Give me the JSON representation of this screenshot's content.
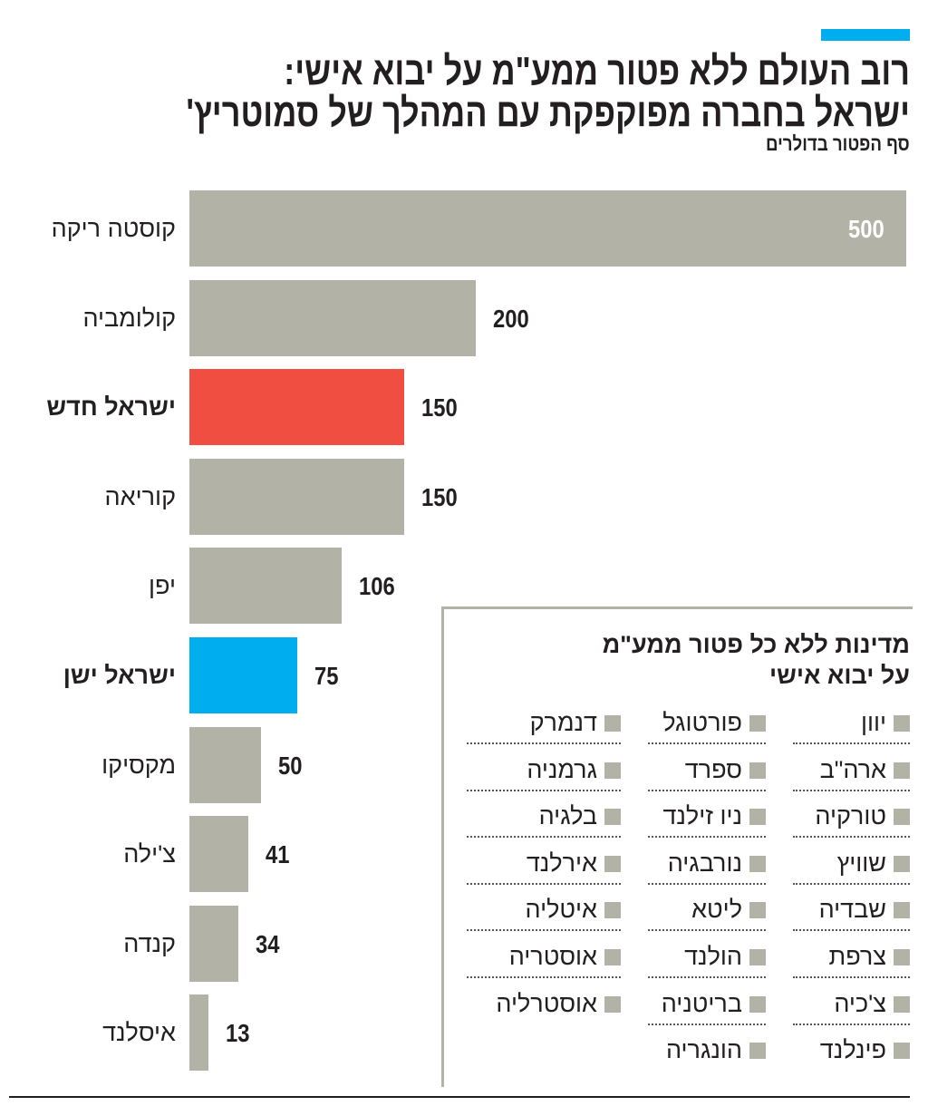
{
  "title_lines": [
    "רוב העולם ללא פטור ממע\"מ על יבוא אישי:",
    "ישראל בחברה מפוקפקת עם המהלך של סמוטריץ'"
  ],
  "subtitle": "סף הפטור בדולרים",
  "colors": {
    "default": "#b3b2a6",
    "israel_new": "#f04e41",
    "israel_old": "#00aeef",
    "accent": "#00aeef"
  },
  "chart_data": {
    "type": "bar",
    "orientation": "horizontal",
    "title": "רוב העולם ללא פטור ממע\"מ על יבוא אישי: ישראל בחברה מפוקפקת עם המהלך של סמוטריץ'",
    "subtitle": "סף הפטור בדולרים",
    "xlim": [
      0,
      500
    ],
    "grid": false,
    "categories": [
      "קוסטה ריקה",
      "קולומביה",
      "ישראל חדש",
      "קוריאה",
      "יפן",
      "ישראל ישן",
      "מקסיקו",
      "צ'ילה",
      "קנדה",
      "איסלנד"
    ],
    "values": [
      500,
      200,
      150,
      150,
      106,
      75,
      50,
      41,
      34,
      13
    ],
    "value_labels": [
      "500",
      "200",
      "150",
      "150",
      "106",
      "75",
      "50",
      "41",
      "34",
      "13"
    ],
    "highlight": {
      "ישראל חדש": "#f04e41",
      "ישראל ישן": "#00aeef"
    },
    "bold_categories": [
      "ישראל חדש",
      "ישראל ישן"
    ]
  },
  "legend": {
    "title_lines": [
      "מדינות ללא כל פטור ממע\"מ",
      "על יבוא אישי"
    ],
    "columns": [
      [
        "יוון",
        "ארה\"ב",
        "טורקיה",
        "שוויץ",
        "שבדיה",
        "צרפת",
        "צ'כיה",
        "פינלנד"
      ],
      [
        "פורטוגל",
        "ספרד",
        "ניו זילנד",
        "נורבגיה",
        "ליטא",
        "הולנד",
        "בריטניה",
        "הונגריה"
      ],
      [
        "דנמרק",
        "גרמניה",
        "בלגיה",
        "אירלנד",
        "איטליה",
        "אוסטריה",
        "אוסטרליה"
      ]
    ]
  }
}
